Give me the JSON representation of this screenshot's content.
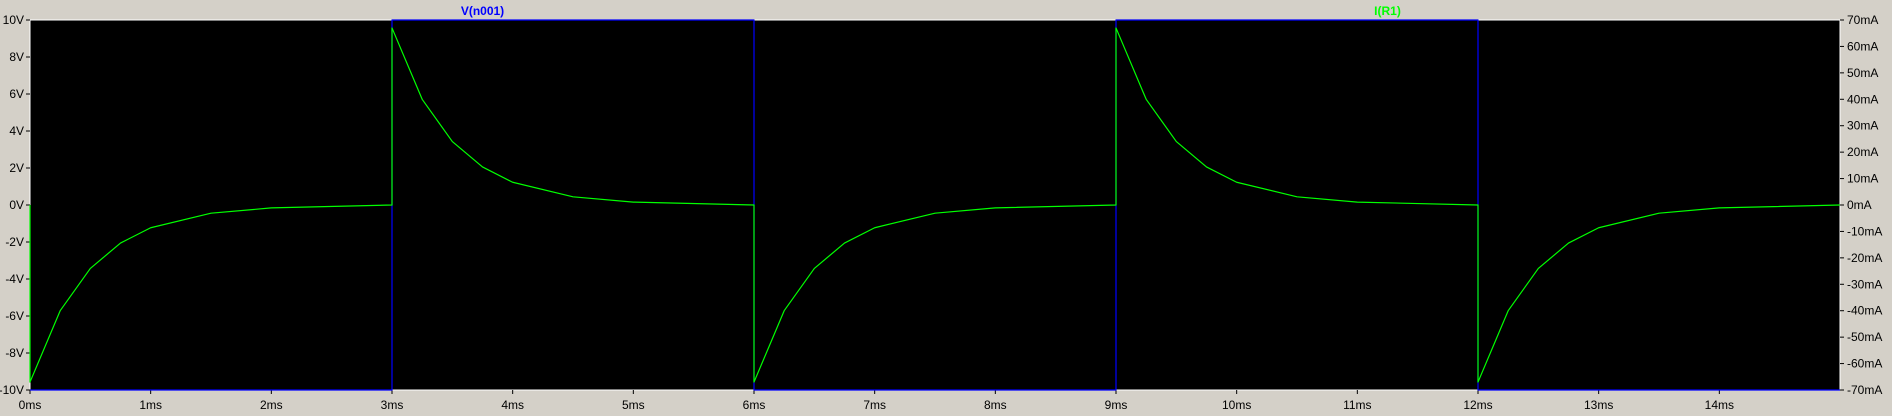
{
  "chart_data": {
    "type": "line",
    "x_unit": "ms",
    "x_range": [
      0,
      15
    ],
    "x_ticks": [
      "0ms",
      "1ms",
      "2ms",
      "3ms",
      "4ms",
      "5ms",
      "6ms",
      "7ms",
      "8ms",
      "9ms",
      "10ms",
      "11ms",
      "12ms",
      "13ms",
      "14ms"
    ],
    "y_left": {
      "range": [
        -10,
        10
      ],
      "ticks": [
        "10V",
        "8V",
        "6V",
        "4V",
        "2V",
        "0V",
        "-2V",
        "-4V",
        "-6V",
        "-8V",
        "-10V"
      ]
    },
    "y_right": {
      "range": [
        -70,
        70
      ],
      "ticks": [
        "70mA",
        "60mA",
        "50mA",
        "40mA",
        "30mA",
        "20mA",
        "10mA",
        "0mA",
        "-10mA",
        "-20mA",
        "-30mA",
        "-40mA",
        "-50mA",
        "-60mA",
        "-70mA"
      ]
    },
    "series": [
      {
        "name": "V(n001)",
        "axis": "left",
        "color": "#0000ff",
        "x": [
          0,
          3,
          3,
          6,
          6,
          9,
          9,
          12,
          12,
          15
        ],
        "y": [
          -10,
          -10,
          10,
          10,
          -10,
          -10,
          10,
          10,
          -10,
          -10
        ]
      },
      {
        "name": "I(R1)",
        "axis": "right",
        "color": "#00ff00",
        "x": [
          0,
          0,
          0.25,
          0.5,
          0.75,
          1,
          1.5,
          2,
          3,
          3,
          3.25,
          3.5,
          3.75,
          4,
          4.5,
          5,
          6,
          6,
          6.25,
          6.5,
          6.75,
          7,
          7.5,
          8,
          9,
          9,
          9.25,
          9.5,
          9.75,
          10,
          10.5,
          11,
          12,
          12,
          12.25,
          12.5,
          12.75,
          13,
          13.5,
          14,
          15
        ],
        "y": [
          0,
          -67,
          -40,
          -24,
          -14.4,
          -8.6,
          -3.1,
          -1.1,
          0,
          67,
          40,
          24,
          14.4,
          8.6,
          3.1,
          1.1,
          0,
          -67,
          -40,
          -24,
          -14.4,
          -8.6,
          -3.1,
          -1.1,
          0,
          67,
          40,
          24,
          14.4,
          8.6,
          3.1,
          1.1,
          0,
          -67,
          -40,
          -24,
          -14.4,
          -8.6,
          -3.1,
          -1.1,
          0
        ]
      }
    ],
    "grid": false,
    "background": "#000000",
    "frame_color": "#ffffff",
    "legend_placement": "top"
  }
}
